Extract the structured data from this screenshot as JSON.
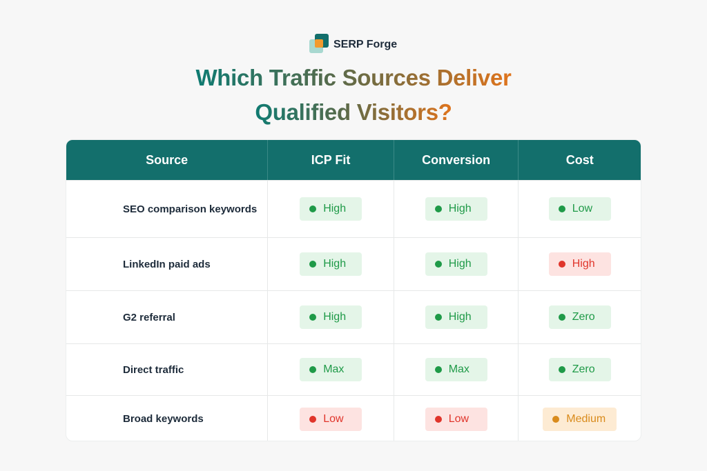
{
  "brand": "SERP Forge",
  "title": [
    "Which Traffic Sources Deliver",
    "Qualified Visitors?"
  ],
  "table": {
    "headers": [
      "Source",
      "ICP Fit",
      "Conversion",
      "Cost"
    ],
    "rows": [
      [
        "SEO comparison keywords",
        {
          "label": "High",
          "color": "#1f9a48",
          "background": "#e4f5e8"
        },
        {
          "label": "High",
          "color": "#1f9a48",
          "background": "#e4f5e8"
        },
        {
          "label": "Low",
          "color": "#1f9a48",
          "background": "#e4f5e8"
        }
      ],
      [
        "LinkedIn paid ads",
        {
          "label": "High",
          "color": "#1f9a48",
          "background": "#e4f5e8"
        },
        {
          "label": "High",
          "color": "#1f9a48",
          "background": "#e4f5e8"
        },
        {
          "label": "High",
          "color": "#e0352b",
          "background": "#fde3e1"
        }
      ],
      [
        "G2 referral",
        {
          "label": "High",
          "color": "#1f9a48",
          "background": "#e4f5e8"
        },
        {
          "label": "High",
          "color": "#1f9a48",
          "background": "#e4f5e8"
        },
        {
          "label": "Zero",
          "color": "#1f9a48",
          "background": "#e4f5e8"
        }
      ],
      [
        "Direct traffic",
        {
          "label": "Max",
          "color": "#1f9a48",
          "background": "#e4f5e8"
        },
        {
          "label": "Max",
          "color": "#1f9a48",
          "background": "#e4f5e8"
        },
        {
          "label": "Zero",
          "color": "#1f9a48",
          "background": "#e4f5e8"
        }
      ],
      [
        "Broad keywords",
        {
          "label": "Low",
          "color": "#e0352b",
          "background": "#fde3e1"
        },
        {
          "label": "Low",
          "color": "#e0352b",
          "background": "#fde3e1"
        },
        {
          "label": "Medium",
          "color": "#d98b1c",
          "background": "#fdebd3"
        }
      ]
    ]
  }
}
